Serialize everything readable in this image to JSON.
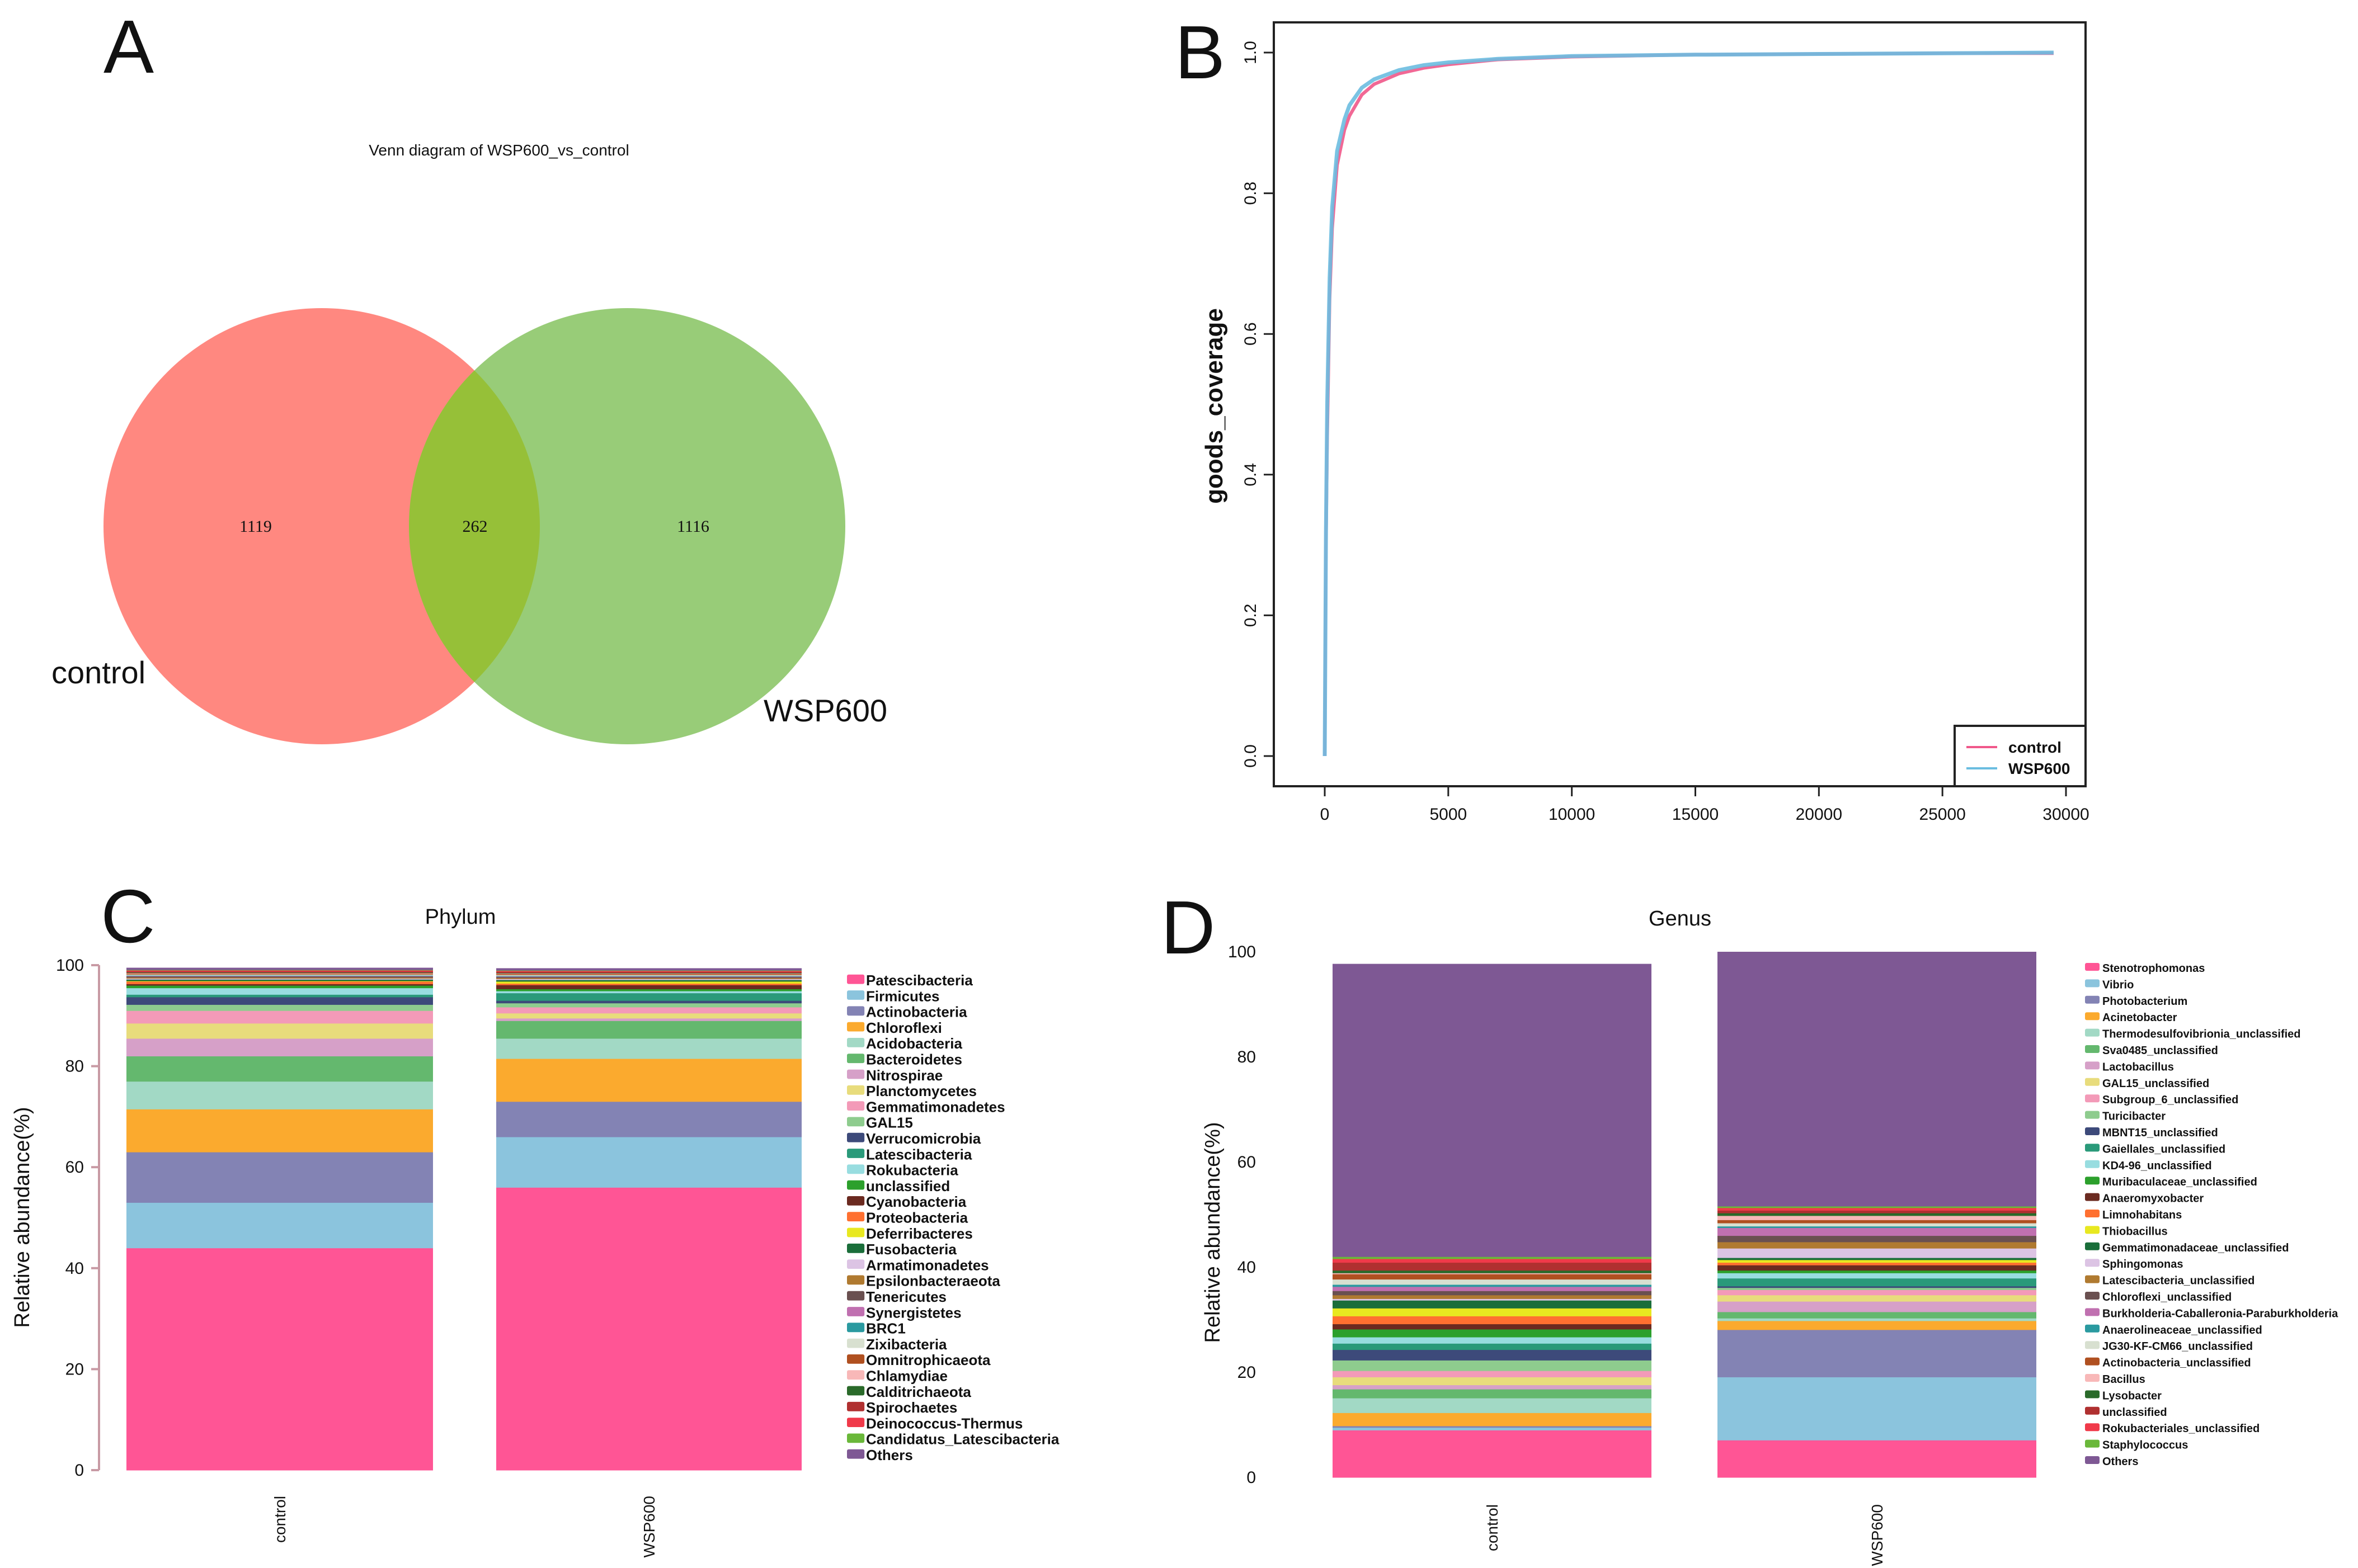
{
  "panels": {
    "a": {
      "letter": "A"
    },
    "b": {
      "letter": "B"
    },
    "c": {
      "letter": "C"
    },
    "d": {
      "letter": "D"
    }
  },
  "chart_data": [
    {
      "id": "venn",
      "type": "venn",
      "title": "Venn diagram of WSP600_vs_control",
      "sets": [
        {
          "name": "control",
          "unique": "1119",
          "color": "#ff8880"
        },
        {
          "name": "WSP600",
          "unique": "1116",
          "color": "#98cc78"
        }
      ],
      "intersection": "262",
      "intersection_color": "#96c038"
    },
    {
      "id": "coverage",
      "type": "line",
      "title": "",
      "xlabel": "",
      "ylabel": "goods_coverage",
      "xlim": [
        0,
        30000
      ],
      "ylim": [
        0,
        1
      ],
      "xticks": [
        "0",
        "5000",
        "10000",
        "15000",
        "20000",
        "25000",
        "30000"
      ],
      "yticks": [
        "0.0",
        "0.2",
        "0.4",
        "0.6",
        "0.8",
        "1.0"
      ],
      "legend_position": "bottom-right",
      "x": [
        0,
        50,
        100,
        200,
        300,
        500,
        800,
        1000,
        1500,
        2000,
        3000,
        4000,
        5000,
        7000,
        10000,
        15000,
        20000,
        25000,
        29500
      ],
      "series": [
        {
          "name": "control",
          "color": "#f0588a",
          "values": [
            0,
            0.3,
            0.45,
            0.65,
            0.75,
            0.84,
            0.89,
            0.91,
            0.94,
            0.955,
            0.97,
            0.978,
            0.983,
            0.99,
            0.994,
            0.997,
            0.998,
            0.999,
            0.999
          ]
        },
        {
          "name": "WSP600",
          "color": "#6bbde0",
          "values": [
            0,
            0.32,
            0.5,
            0.68,
            0.78,
            0.86,
            0.905,
            0.925,
            0.95,
            0.962,
            0.975,
            0.982,
            0.986,
            0.991,
            0.995,
            0.997,
            0.998,
            0.999,
            1.0
          ]
        }
      ]
    },
    {
      "id": "phylum",
      "type": "bar",
      "stacked": true,
      "title": "Phylum",
      "xlabel": "",
      "ylabel": "Relative abundance(%)",
      "ylim": [
        0,
        100
      ],
      "yticks": [
        "0",
        "20",
        "40",
        "60",
        "80",
        "100"
      ],
      "categories": [
        "control",
        "WSP600"
      ],
      "legend_position": "right",
      "series": [
        {
          "name": "Patescibacteria",
          "color": "#ff5595",
          "values": [
            44,
            56
          ]
        },
        {
          "name": "Firmicutes",
          "color": "#8bc4dd",
          "values": [
            9,
            10
          ]
        },
        {
          "name": "Actinobacteria",
          "color": "#8383b4",
          "values": [
            10,
            7
          ]
        },
        {
          "name": "Chloroflexi",
          "color": "#fbaa2e",
          "values": [
            8.5,
            8.5
          ]
        },
        {
          "name": "Acidobacteria",
          "color": "#a2d9c5",
          "values": [
            5.5,
            4
          ]
        },
        {
          "name": "Bacteroidetes",
          "color": "#64b86e",
          "values": [
            5,
            3.5
          ]
        },
        {
          "name": "Nitrospirae",
          "color": "#d6a0c8",
          "values": [
            3.5,
            0.5
          ]
        },
        {
          "name": "Planctomycetes",
          "color": "#e8dc7c",
          "values": [
            3,
            1
          ]
        },
        {
          "name": "Gemmatimonadetes",
          "color": "#f39ab8",
          "values": [
            2.5,
            1.2
          ]
        },
        {
          "name": "GAL15",
          "color": "#8ecc8e",
          "values": [
            1.2,
            0.8
          ]
        },
        {
          "name": "Verrucomicrobia",
          "color": "#3d4a7a",
          "values": [
            1.5,
            0.5
          ]
        },
        {
          "name": "Latescibacteria",
          "color": "#2a9a7a",
          "values": [
            0.5,
            1.5
          ]
        },
        {
          "name": "Rokubacteria",
          "color": "#98dde0",
          "values": [
            1.3,
            0.4
          ]
        },
        {
          "name": "unclassified",
          "color": "#2ca02c",
          "values": [
            0.5,
            0.4
          ]
        },
        {
          "name": "Cyanobacteria",
          "color": "#6b2a20",
          "values": [
            0.3,
            0.8
          ]
        },
        {
          "name": "Proteobacteria",
          "color": "#ff7030",
          "values": [
            0.5,
            0.3
          ]
        },
        {
          "name": "Deferribacteres",
          "color": "#e8e820",
          "values": [
            0.1,
            0.4
          ]
        },
        {
          "name": "Fusobacteria",
          "color": "#1a6e3a",
          "values": [
            0.3,
            0.3
          ]
        },
        {
          "name": "Armatimonadetes",
          "color": "#dcc4e4",
          "values": [
            0.2,
            0.2
          ]
        },
        {
          "name": "Epsilonbacteraeota",
          "color": "#b07a30",
          "values": [
            0.2,
            0.2
          ]
        },
        {
          "name": "Tenericutes",
          "color": "#6a5050",
          "values": [
            0.2,
            0.2
          ]
        },
        {
          "name": "Synergistetes",
          "color": "#c070b0",
          "values": [
            0.1,
            0.1
          ]
        },
        {
          "name": "BRC1",
          "color": "#2a9aa0",
          "values": [
            0.1,
            0.1
          ]
        },
        {
          "name": "Zixibacteria",
          "color": "#d8e0d0",
          "values": [
            0.2,
            0.2
          ]
        },
        {
          "name": "Omnitrophicaeota",
          "color": "#b05020",
          "values": [
            0.2,
            0.2
          ]
        },
        {
          "name": "Chlamydiae",
          "color": "#f8b8b8",
          "values": [
            0.1,
            0.1
          ]
        },
        {
          "name": "Calditrichaeota",
          "color": "#2a6a2a",
          "values": [
            0.1,
            0.1
          ]
        },
        {
          "name": "Spirochaetes",
          "color": "#b03030",
          "values": [
            0.2,
            0.2
          ]
        },
        {
          "name": "Deinococcus-Thermus",
          "color": "#f03a4a",
          "values": [
            0.2,
            0.2
          ]
        },
        {
          "name": "Candidatus_Latescibacteria",
          "color": "#6ab83a",
          "values": [
            0.1,
            0.1
          ]
        },
        {
          "name": "Others",
          "color": "#7e5894",
          "values": [
            0.4,
            0.4
          ]
        }
      ]
    },
    {
      "id": "genus",
      "type": "bar",
      "stacked": true,
      "title": "Genus",
      "xlabel": "",
      "ylabel": "Relative abundance(%)",
      "ylim": [
        0,
        100
      ],
      "yticks": [
        "0",
        "20",
        "40",
        "60",
        "80",
        "100"
      ],
      "categories": [
        "control",
        "WSP600"
      ],
      "legend_position": "right",
      "series": [
        {
          "name": "Stenotrophomonas",
          "color": "#ff5595",
          "values": [
            9,
            7.1
          ]
        },
        {
          "name": "Vibrio",
          "color": "#8bc4dd",
          "values": [
            0.5,
            12
          ]
        },
        {
          "name": "Photobacterium",
          "color": "#8383b4",
          "values": [
            0.3,
            9
          ]
        },
        {
          "name": "Acinetobacter",
          "color": "#fbaa2e",
          "values": [
            2.5,
            1.7
          ]
        },
        {
          "name": "Thermodesulfovibrionia_unclassified",
          "color": "#a2d9c5",
          "values": [
            2.8,
            0.5
          ]
        },
        {
          "name": "Sva0485_unclassified",
          "color": "#64b86e",
          "values": [
            1.7,
            1.2
          ]
        },
        {
          "name": "Lactobacillus",
          "color": "#d6a0c8",
          "values": [
            0.8,
            2
          ]
        },
        {
          "name": "GAL15_unclassified",
          "color": "#e8dc7c",
          "values": [
            1.5,
            1.2
          ]
        },
        {
          "name": "Subgroup_6_unclassified",
          "color": "#f39ab8",
          "values": [
            1.2,
            1
          ]
        },
        {
          "name": "Turicibacter",
          "color": "#8ecc8e",
          "values": [
            2,
            0.4
          ]
        },
        {
          "name": "MBNT15_unclassified",
          "color": "#3d4a7a",
          "values": [
            2,
            0.3
          ]
        },
        {
          "name": "Gaiellales_unclassified",
          "color": "#2a9a7a",
          "values": [
            1.2,
            1.5
          ]
        },
        {
          "name": "KD4-96_unclassified",
          "color": "#98dde0",
          "values": [
            1.2,
            1
          ]
        },
        {
          "name": "Muribaculaceae_unclassified",
          "color": "#2ca02c",
          "values": [
            1.5,
            0.5
          ]
        },
        {
          "name": "Anaeromyxobacter",
          "color": "#6b2a20",
          "values": [
            1,
            1
          ]
        },
        {
          "name": "Limnohabitans",
          "color": "#ff7030",
          "values": [
            1.5,
            0.5
          ]
        },
        {
          "name": "Thiobacillus",
          "color": "#e8e820",
          "values": [
            1.5,
            0.5
          ]
        },
        {
          "name": "Gemmatimonadaceae_unclassified",
          "color": "#1a6e3a",
          "values": [
            1.5,
            0.4
          ]
        },
        {
          "name": "Sphingomonas",
          "color": "#dcc4e4",
          "values": [
            0.3,
            1.8
          ]
        },
        {
          "name": "Latescibacteria_unclassified",
          "color": "#b07a30",
          "values": [
            0.7,
            1.2
          ]
        },
        {
          "name": "Chloroflexi_unclassified",
          "color": "#6a5050",
          "values": [
            0.8,
            1.2
          ]
        },
        {
          "name": "Burkholderia-Caballeronia-Paraburkholderia",
          "color": "#c070b0",
          "values": [
            0.8,
            1.5
          ]
        },
        {
          "name": "Anaerolineaceae_unclassified",
          "color": "#2a9aa0",
          "values": [
            0.4,
            0.3
          ]
        },
        {
          "name": "JG30-KF-CM66_unclassified",
          "color": "#d8e0d0",
          "values": [
            1,
            0.6
          ]
        },
        {
          "name": "Actinobacteria_unclassified",
          "color": "#b05020",
          "values": [
            1,
            0.6
          ]
        },
        {
          "name": "Bacillus",
          "color": "#f8b8b8",
          "values": [
            0.2,
            0.8
          ]
        },
        {
          "name": "Lysobacter",
          "color": "#2a6a2a",
          "values": [
            0.5,
            0.5
          ]
        },
        {
          "name": "unclassified",
          "color": "#b03030",
          "values": [
            1.5,
            0.5
          ]
        },
        {
          "name": "Rokubacteriales_unclassified",
          "color": "#f03a4a",
          "values": [
            0.7,
            0.5
          ]
        },
        {
          "name": "Staphylococcus",
          "color": "#6ab83a",
          "values": [
            0.4,
            0.3
          ]
        },
        {
          "name": "Others",
          "color": "#7e5894",
          "values": [
            55.7,
            48.4
          ]
        }
      ]
    }
  ]
}
